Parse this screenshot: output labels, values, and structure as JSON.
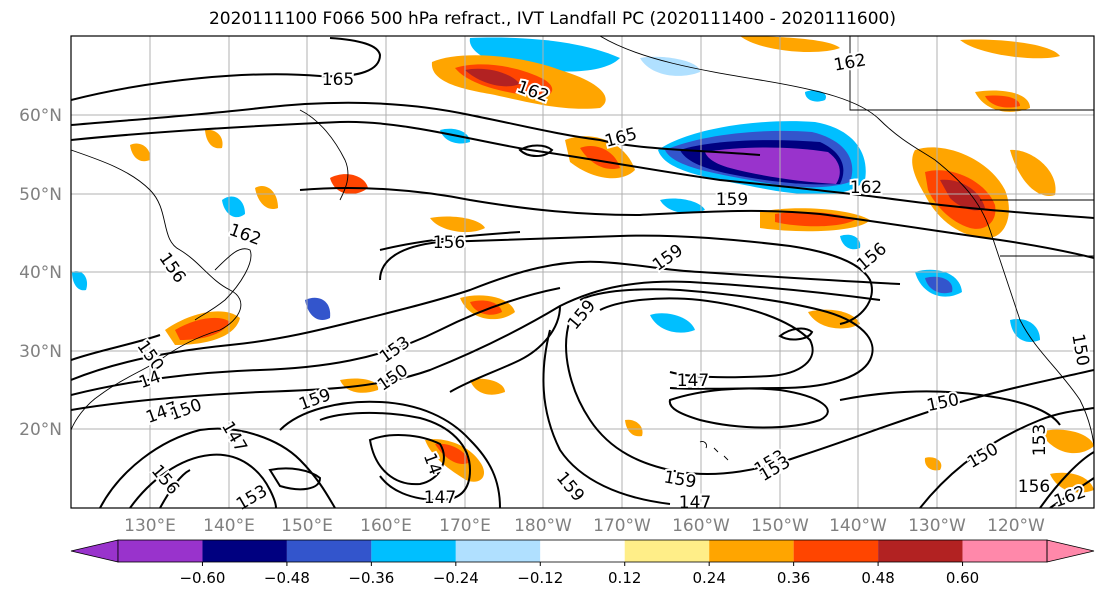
{
  "title": "2020111100 F066 500 hPa refract., IVT Landfall PC (2020111400 - 2020111600)",
  "lat_ticks": [
    "60°N",
    "50°N",
    "40°N",
    "30°N",
    "20°N"
  ],
  "lon_ticks": [
    "130°E",
    "140°E",
    "150°E",
    "160°E",
    "170°E",
    "180°W",
    "170°W",
    "160°W",
    "150°W",
    "140°W",
    "130°W",
    "120°W"
  ],
  "contour_labels": [
    "165",
    "162",
    "162",
    "165",
    "162",
    "159",
    "162",
    "156",
    "159",
    "156",
    "156",
    "159",
    "153",
    "150",
    "159",
    "150",
    "147",
    "150",
    "147",
    "159",
    "153",
    "150",
    "147",
    "153",
    "156",
    "153",
    "156",
    "162",
    "150",
    "14",
    "153",
    "147",
    "14",
    "147",
    "150",
    "159"
  ],
  "colorbar": {
    "colors": [
      "#9933cc",
      "#000080",
      "#3355cc",
      "#00bfff",
      "#b0e0ff",
      "#ffffff",
      "#ffee88",
      "#ffa500",
      "#ff4500",
      "#b22222",
      "#ff88aa"
    ],
    "ticks": [
      "−0.60",
      "−0.48",
      "−0.36",
      "−0.24",
      "−0.12",
      "0.12",
      "0.24",
      "0.36",
      "0.48",
      "0.60"
    ]
  },
  "colors": {
    "tick_label": "#808080",
    "contour": "#000000",
    "grid": "#b0b0b0",
    "coast": "#000000"
  }
}
